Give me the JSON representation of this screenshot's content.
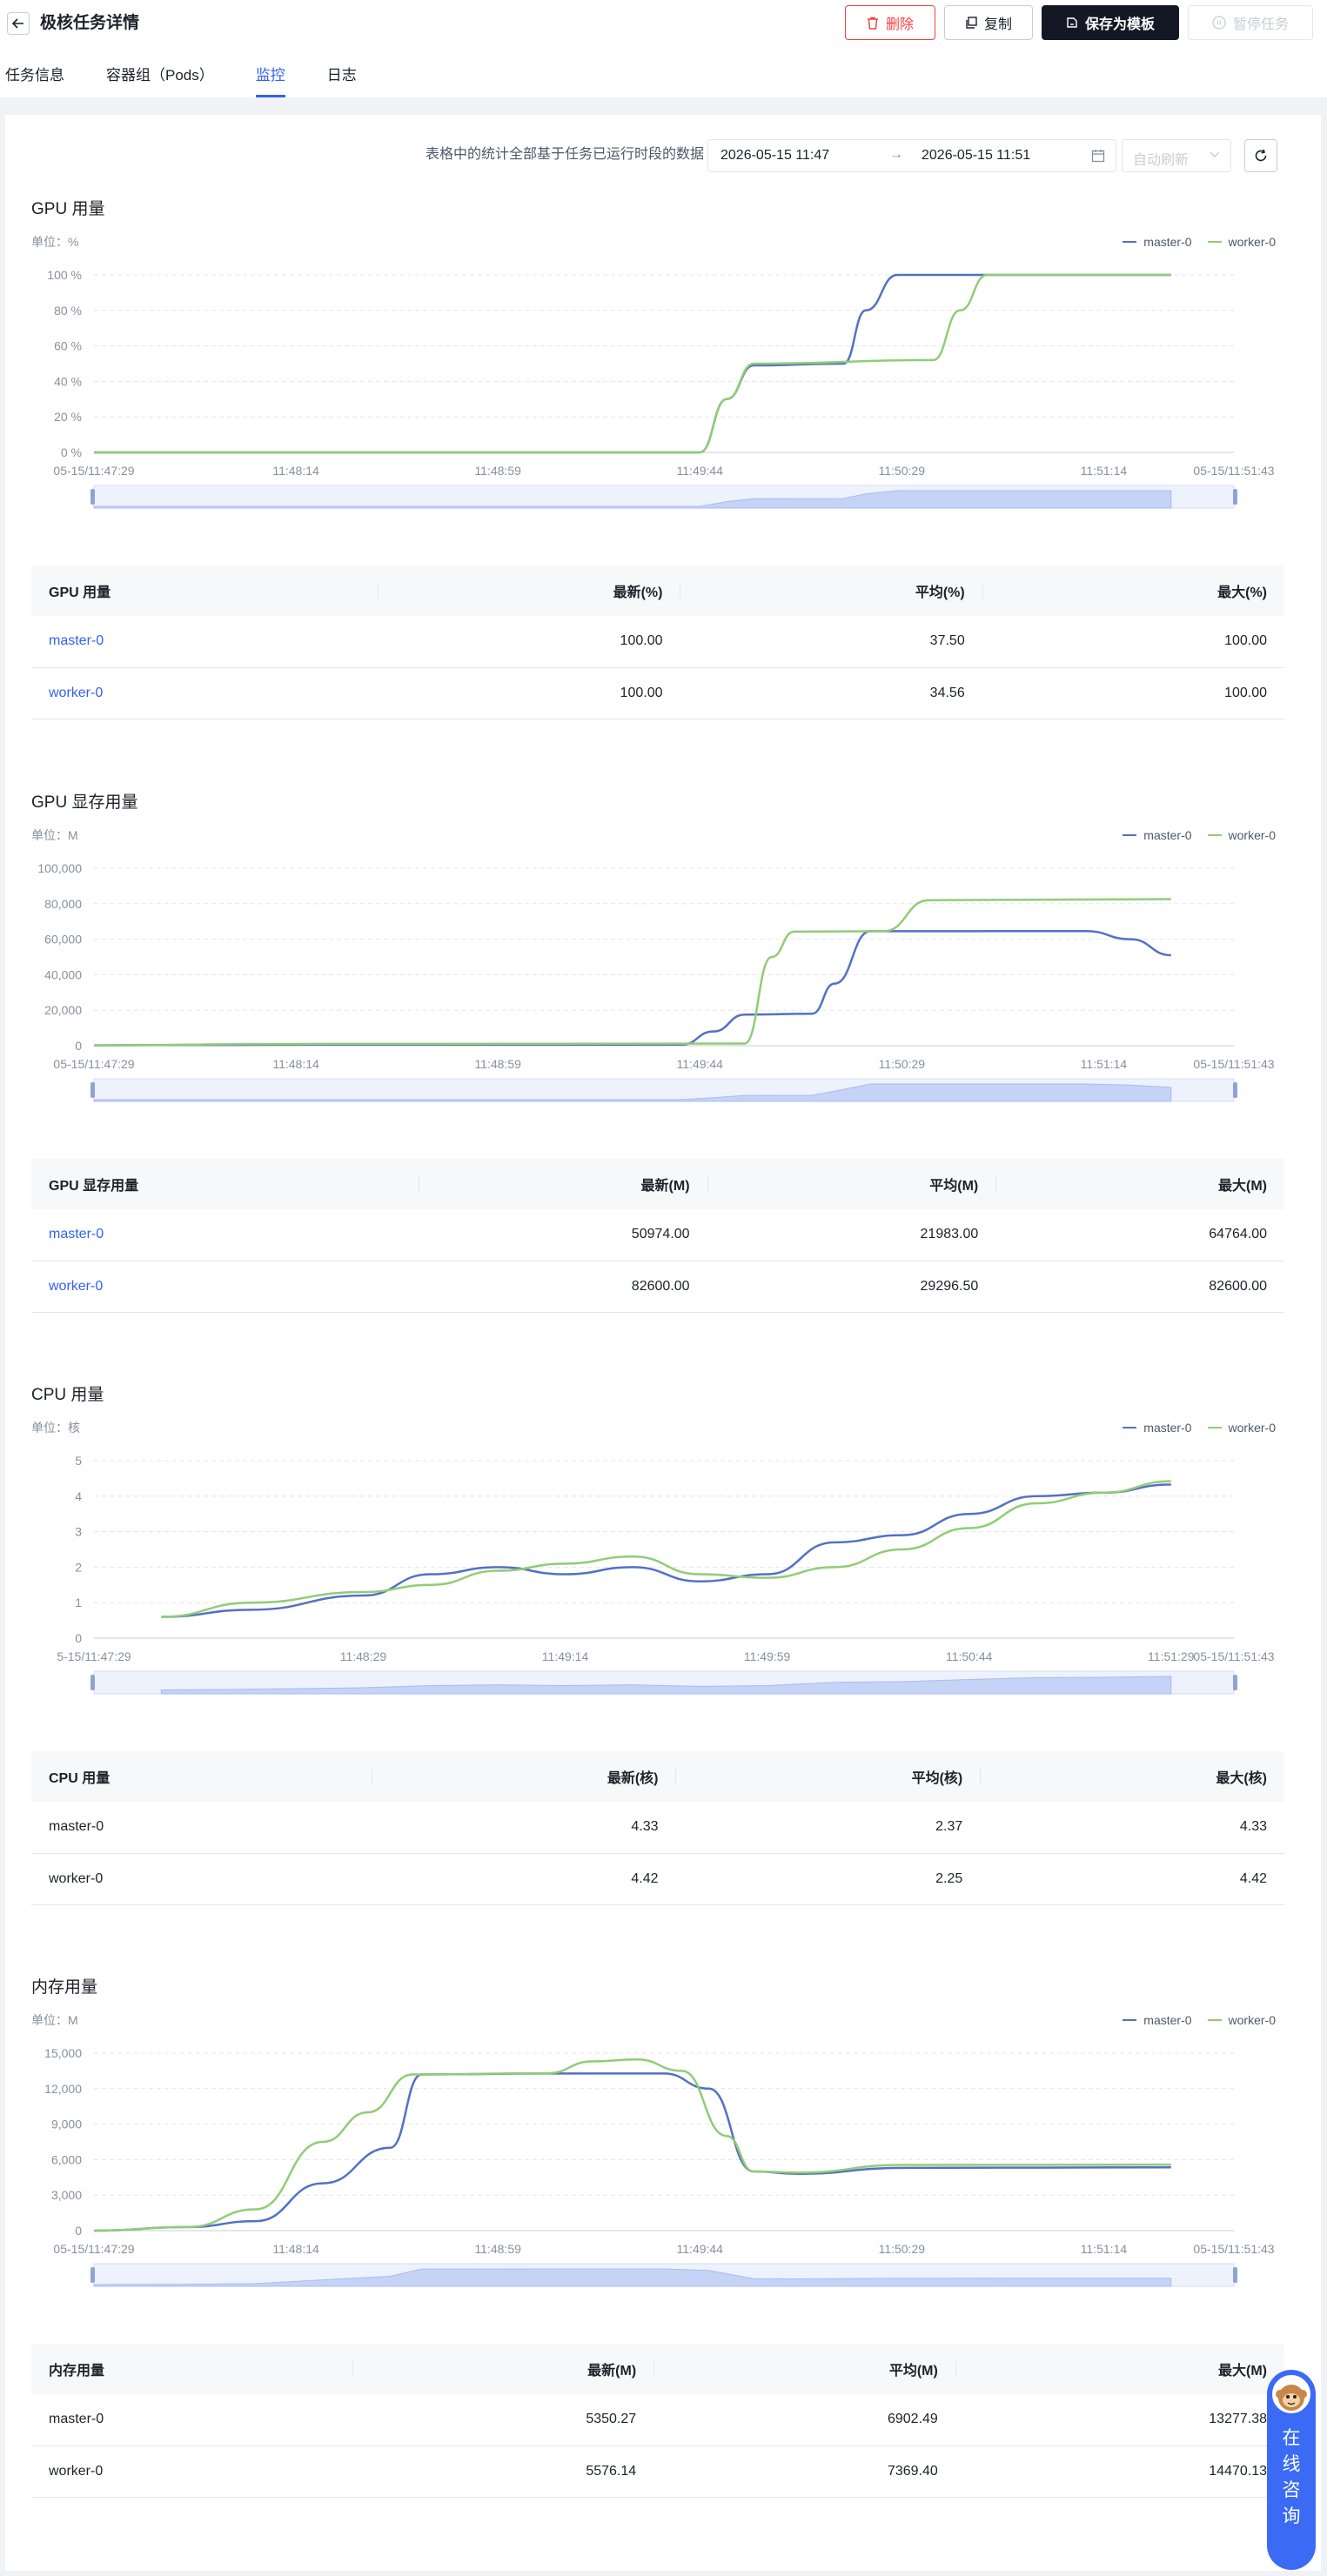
{
  "header": {
    "title": "极核任务详情",
    "delete_label": "删除",
    "copy_label": "复制",
    "save_template_label": "保存为模板",
    "pause_label": "暂停任务"
  },
  "tabs": [
    {
      "label": "任务信息"
    },
    {
      "label": "容器组（Pods）"
    },
    {
      "label": "监控"
    },
    {
      "label": "日志"
    }
  ],
  "filters": {
    "note": "表格中的统计全部基于任务已运行时段的数据",
    "range_start": "2026-05-15 11:47",
    "range_end": "2026-05-15 11:51",
    "range_arrow": "→",
    "auto_refresh": "自动刷新"
  },
  "colors": {
    "master": "#5470c6",
    "worker": "#91cc75",
    "accent": "#3361f0"
  },
  "sections": [
    {
      "title": "GPU 用量",
      "unit": "单位：%",
      "legend": [
        "master-0",
        "worker-0"
      ],
      "columns": [
        "GPU 用量",
        "最新(%)",
        "平均(%)",
        "最大(%)"
      ],
      "rows": [
        {
          "name": "master-0",
          "latest": "100.00",
          "avg": "37.50",
          "max": "100.00"
        },
        {
          "name": "worker-0",
          "latest": "100.00",
          "avg": "34.56",
          "max": "100.00"
        }
      ]
    },
    {
      "title": "GPU 显存用量",
      "unit": "单位：M",
      "legend": [
        "master-0",
        "worker-0"
      ],
      "columns": [
        "GPU 显存用量",
        "最新(M)",
        "平均(M)",
        "最大(M)"
      ],
      "rows": [
        {
          "name": "master-0",
          "latest": "50974.00",
          "avg": "21983.00",
          "max": "64764.00"
        },
        {
          "name": "worker-0",
          "latest": "82600.00",
          "avg": "29296.50",
          "max": "82600.00"
        }
      ]
    },
    {
      "title": "CPU 用量",
      "unit": "单位：核",
      "legend": [
        "master-0",
        "worker-0"
      ],
      "columns": [
        "CPU 用量",
        "最新(核)",
        "平均(核)",
        "最大(核)"
      ],
      "rows": [
        {
          "name": "master-0",
          "latest": "4.33",
          "avg": "2.37",
          "max": "4.33"
        },
        {
          "name": "worker-0",
          "latest": "4.42",
          "avg": "2.25",
          "max": "4.42"
        }
      ]
    },
    {
      "title": "内存用量",
      "unit": "单位：M",
      "legend": [
        "master-0",
        "worker-0"
      ],
      "columns": [
        "内存用量",
        "最新(M)",
        "平均(M)",
        "最大(M)"
      ],
      "rows": [
        {
          "name": "master-0",
          "latest": "5350.27",
          "avg": "6902.49",
          "max": "13277.38"
        },
        {
          "name": "worker-0",
          "latest": "5576.14",
          "avg": "7369.40",
          "max": "14470.13"
        }
      ]
    }
  ],
  "chart_data": [
    {
      "type": "line",
      "title": "GPU 用量",
      "ylabel": "单位：%",
      "ylim": [
        0,
        100
      ],
      "y_ticks": [
        "0 %",
        "20 %",
        "40 %",
        "60 %",
        "80 %",
        "100 %"
      ],
      "y_tick_values": [
        0,
        20,
        40,
        60,
        80,
        100
      ],
      "x_range": [
        "05-15/11:47:29",
        "05-15/11:51:43"
      ],
      "x_ticks": [
        "05-15/11:47:29",
        "11:48:14",
        "11:48:59",
        "11:49:44",
        "11:50:29",
        "11:51:14",
        "05-15/11:51:43"
      ],
      "x_tick_times": [
        "11:47:29",
        "11:48:14",
        "11:48:59",
        "11:49:44",
        "11:50:29",
        "11:51:14",
        "11:51:43"
      ],
      "legend_position": "top-right",
      "series": [
        {
          "name": "master-0",
          "x": [
            "11:47:29",
            "11:49:44",
            "11:49:50",
            "11:49:56",
            "11:50:16",
            "11:50:21",
            "11:50:28",
            "11:51:29"
          ],
          "values": [
            0,
            0,
            30,
            49,
            50,
            80,
            100,
            100
          ]
        },
        {
          "name": "worker-0",
          "x": [
            "11:47:29",
            "11:49:44",
            "11:49:50",
            "11:49:56",
            "11:50:36",
            "11:50:42",
            "11:50:48",
            "11:51:29"
          ],
          "values": [
            0,
            0,
            30,
            50,
            52,
            80,
            100,
            100
          ]
        }
      ]
    },
    {
      "type": "line",
      "title": "GPU 显存用量",
      "ylabel": "单位：M",
      "ylim": [
        0,
        100000
      ],
      "y_ticks": [
        "0",
        "20,000",
        "40,000",
        "60,000",
        "80,000",
        "100,000"
      ],
      "y_tick_values": [
        0,
        20000,
        40000,
        60000,
        80000,
        100000
      ],
      "x_range": [
        "05-15/11:47:29",
        "05-15/11:51:43"
      ],
      "x_ticks": [
        "05-15/11:47:29",
        "11:48:14",
        "11:48:59",
        "11:49:44",
        "11:50:29",
        "11:51:14",
        "05-15/11:51:43"
      ],
      "x_tick_times": [
        "11:47:29",
        "11:48:14",
        "11:48:59",
        "11:49:44",
        "11:50:29",
        "11:51:14",
        "11:51:43"
      ],
      "legend_position": "top-right",
      "series": [
        {
          "name": "master-0",
          "x": [
            "11:47:29",
            "11:48:14",
            "11:49:40",
            "11:49:47",
            "11:49:54",
            "11:50:09",
            "11:50:14",
            "11:50:22",
            "11:51:10",
            "11:51:20",
            "11:51:29"
          ],
          "values": [
            200,
            600,
            600,
            8000,
            17500,
            18000,
            35000,
            64500,
            64600,
            60000,
            51000
          ]
        },
        {
          "name": "worker-0",
          "x": [
            "11:47:29",
            "11:48:14",
            "11:49:54",
            "11:50:00",
            "11:50:05",
            "11:50:25",
            "11:50:35",
            "11:51:29"
          ],
          "values": [
            200,
            1000,
            1200,
            50000,
            64300,
            64500,
            82000,
            82600
          ]
        }
      ]
    },
    {
      "type": "line",
      "title": "CPU 用量",
      "ylabel": "单位：核",
      "ylim": [
        0,
        5
      ],
      "y_ticks": [
        "0",
        "1",
        "2",
        "3",
        "4",
        "5"
      ],
      "y_tick_values": [
        0,
        1,
        2,
        3,
        4,
        5
      ],
      "x_range": [
        "05-15/11:47:29",
        "05-15/11:51:43"
      ],
      "x_ticks": [
        "5-15/11:47:29",
        "11:48:29",
        "11:49:14",
        "11:49:59",
        "11:50:44",
        "11:51:29",
        "05-15/11:51:43"
      ],
      "x_tick_times": [
        "11:47:29",
        "11:48:29",
        "11:49:14",
        "11:49:59",
        "11:50:44",
        "11:51:29",
        "11:51:43"
      ],
      "legend_position": "top-right",
      "series": [
        {
          "name": "master-0",
          "x": [
            "11:47:44",
            "11:48:04",
            "11:48:29",
            "11:48:44",
            "11:48:59",
            "11:49:14",
            "11:49:29",
            "11:49:44",
            "11:49:59",
            "11:50:14",
            "11:50:29",
            "11:50:44",
            "11:50:59",
            "11:51:14",
            "11:51:29"
          ],
          "values": [
            0.6,
            0.8,
            1.2,
            1.8,
            2.0,
            1.8,
            2.0,
            1.6,
            1.8,
            2.7,
            2.9,
            3.5,
            4.0,
            4.1,
            4.33
          ]
        },
        {
          "name": "worker-0",
          "x": [
            "11:47:44",
            "11:48:04",
            "11:48:29",
            "11:48:44",
            "11:48:59",
            "11:49:14",
            "11:49:29",
            "11:49:44",
            "11:49:59",
            "11:50:14",
            "11:50:29",
            "11:50:44",
            "11:50:59",
            "11:51:14",
            "11:51:29"
          ],
          "values": [
            0.6,
            1.0,
            1.3,
            1.5,
            1.9,
            2.1,
            2.3,
            1.8,
            1.7,
            2.0,
            2.5,
            3.1,
            3.8,
            4.1,
            4.42
          ]
        }
      ]
    },
    {
      "type": "line",
      "title": "内存用量",
      "ylabel": "单位：M",
      "ylim": [
        0,
        15000
      ],
      "y_ticks": [
        "0",
        "3,000",
        "6,000",
        "9,000",
        "12,000",
        "15,000"
      ],
      "y_tick_values": [
        0,
        3000,
        6000,
        9000,
        12000,
        15000
      ],
      "x_range": [
        "05-15/11:47:29",
        "05-15/11:51:43"
      ],
      "x_ticks": [
        "05-15/11:47:29",
        "11:48:14",
        "11:48:59",
        "11:49:44",
        "11:50:29",
        "11:51:14",
        "05-15/11:51:43"
      ],
      "x_tick_times": [
        "11:47:29",
        "11:48:14",
        "11:48:59",
        "11:49:44",
        "11:50:29",
        "11:51:14",
        "11:51:43"
      ],
      "legend_position": "top-right",
      "series": [
        {
          "name": "master-0",
          "x": [
            "11:47:29",
            "11:47:50",
            "11:48:05",
            "11:48:20",
            "11:48:35",
            "11:48:42",
            "11:49:10",
            "11:49:36",
            "11:49:46",
            "11:49:56",
            "11:50:06",
            "11:50:29",
            "11:51:29"
          ],
          "values": [
            0,
            300,
            800,
            4000,
            7000,
            13200,
            13277,
            13277,
            12000,
            5000,
            4800,
            5300,
            5350
          ]
        },
        {
          "name": "worker-0",
          "x": [
            "11:47:29",
            "11:47:50",
            "11:48:05",
            "11:48:20",
            "11:48:30",
            "11:48:40",
            "11:49:10",
            "11:49:20",
            "11:49:30",
            "11:49:40",
            "11:49:50",
            "11:49:56",
            "11:50:06",
            "11:50:29",
            "11:51:29"
          ],
          "values": [
            0,
            300,
            1800,
            7500,
            10000,
            13200,
            13300,
            14300,
            14470,
            13500,
            8000,
            5000,
            4900,
            5550,
            5576
          ]
        }
      ]
    }
  ]
}
